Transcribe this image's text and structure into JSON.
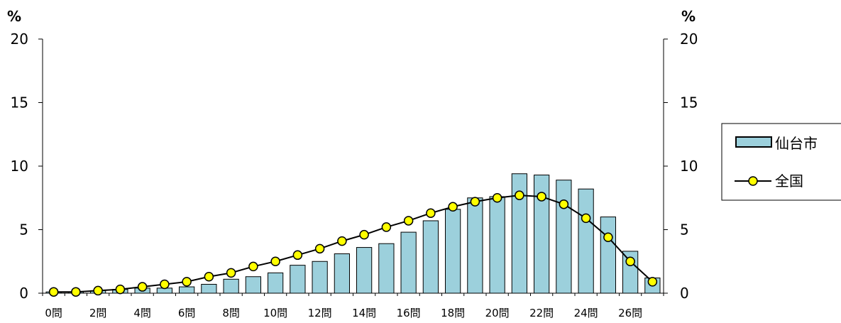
{
  "chart_data": {
    "type": "bar",
    "unit_left": "%",
    "unit_right": "%",
    "y_ticks": [
      "0",
      "5",
      "10",
      "15",
      "20"
    ],
    "ylim": [
      0,
      20
    ],
    "x_tick_labels": [
      "0問",
      "2問",
      "4問",
      "6問",
      "8問",
      "10問",
      "12問",
      "14問",
      "16問",
      "18問",
      "20問",
      "22問",
      "24問",
      "26問"
    ],
    "categories": [
      0,
      1,
      2,
      3,
      4,
      5,
      6,
      7,
      8,
      9,
      10,
      11,
      12,
      13,
      14,
      15,
      16,
      17,
      18,
      19,
      20,
      21,
      22,
      23,
      24,
      25,
      26,
      27
    ],
    "series": [
      {
        "name": "仙台市",
        "type": "bar",
        "color": "#9cd0dc",
        "values": [
          0.1,
          0.1,
          0.2,
          0.3,
          0.4,
          0.4,
          0.5,
          0.7,
          1.1,
          1.3,
          1.6,
          2.2,
          2.5,
          3.1,
          3.6,
          3.9,
          4.8,
          5.7,
          6.6,
          7.5,
          7.6,
          9.4,
          9.3,
          8.9,
          8.2,
          6.0,
          3.3,
          1.2
        ]
      },
      {
        "name": "全国",
        "type": "line",
        "color": "#ffff00",
        "values": [
          0.1,
          0.1,
          0.2,
          0.3,
          0.5,
          0.7,
          0.9,
          1.3,
          1.6,
          2.1,
          2.5,
          3.0,
          3.5,
          4.1,
          4.6,
          5.2,
          5.7,
          6.3,
          6.8,
          7.2,
          7.5,
          7.7,
          7.6,
          7.0,
          5.9,
          4.4,
          2.5,
          0.9
        ]
      }
    ],
    "legend_position": "right",
    "grid": false
  }
}
